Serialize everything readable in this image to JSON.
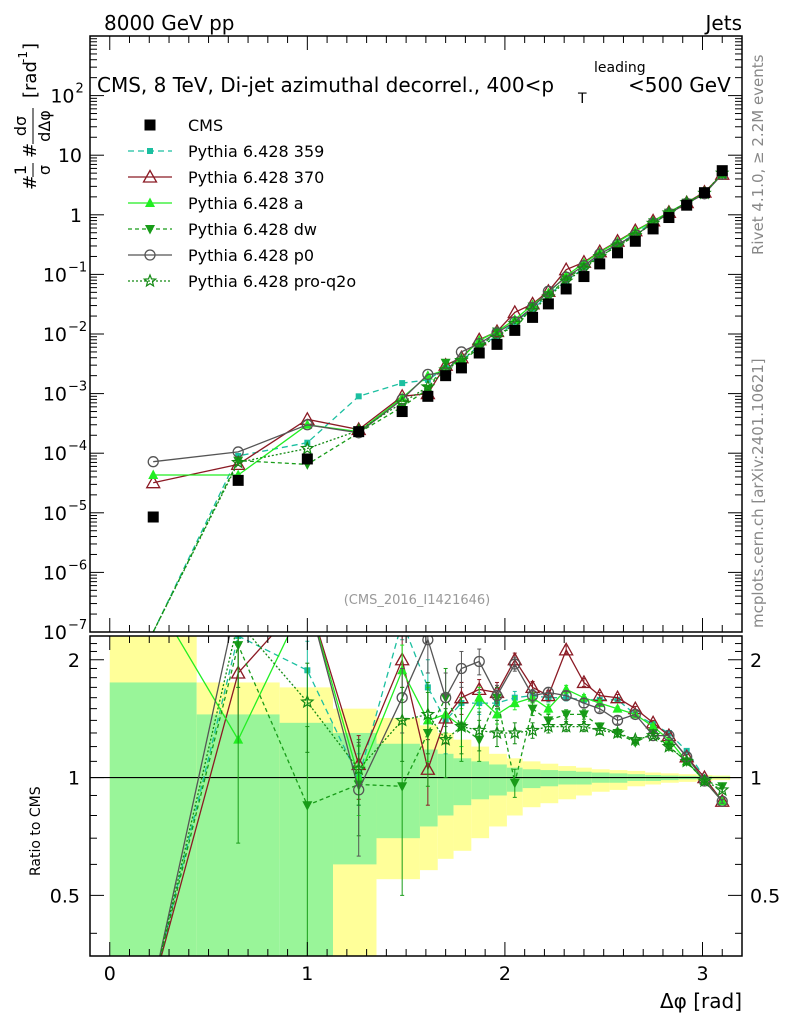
{
  "header": {
    "left": "8000 GeV pp",
    "right": "Jets",
    "side_rivet": "Rivet 4.1.0, ≥ 2.2M events",
    "side_site": "mcplots.cern.ch [arXiv:2401.10621]",
    "analysis_id": "(CMS_2016_I1421646)"
  },
  "chart_data": {
    "type": "scatter",
    "title_parts": [
      "CMS, 8 TeV, Di-jet azimuthal decorrel., 400<p",
      "leading",
      "T",
      "<500 GeV"
    ],
    "ylabel_parts": [
      "#",
      "1",
      "σ",
      "#",
      "dσ",
      "dΔφ",
      "[rad",
      "-1",
      "]"
    ],
    "xlabel": "Δφ [rad]",
    "ratio_ylabel": "Ratio to CMS",
    "xlim": [
      -0.1,
      3.2
    ],
    "ylim": [
      1e-07,
      1000
    ],
    "ratio_ylim": [
      0.35,
      2.3
    ],
    "x_ticks": [
      0,
      1,
      2,
      3
    ],
    "x_tick_labels": [
      "0",
      "1",
      "2",
      "3"
    ],
    "y_ticks": [
      1e-07,
      1e-06,
      1e-05,
      0.0001,
      0.001,
      0.01,
      0.1,
      1,
      10,
      100
    ],
    "y_tick_labels": [
      {
        "base": "10",
        "exp": "−7"
      },
      {
        "base": "10",
        "exp": "−6"
      },
      {
        "base": "10",
        "exp": "−5"
      },
      {
        "base": "10",
        "exp": "−4"
      },
      {
        "base": "10",
        "exp": "−3"
      },
      {
        "base": "10",
        "exp": "−2"
      },
      {
        "base": "10",
        "exp": "−1"
      },
      {
        "base": "1",
        "exp": ""
      },
      {
        "base": "10",
        "exp": ""
      },
      {
        "base": "10",
        "exp": "2"
      }
    ],
    "ratio_ticks": [
      0.5,
      1,
      2
    ],
    "ratio_tick_labels": [
      "0.5",
      "1",
      "2"
    ],
    "x": [
      0.22,
      0.65,
      1.0,
      1.26,
      1.48,
      1.61,
      1.7,
      1.78,
      1.87,
      1.96,
      2.05,
      2.14,
      2.22,
      2.31,
      2.4,
      2.48,
      2.57,
      2.66,
      2.75,
      2.83,
      2.92,
      3.01,
      3.1
    ],
    "bands": {
      "edges": [
        0.0,
        0.44,
        0.86,
        1.13,
        1.35,
        1.57,
        1.66,
        1.74,
        1.83,
        1.92,
        2.01,
        2.09,
        2.18,
        2.27,
        2.36,
        2.44,
        2.53,
        2.62,
        2.71,
        2.79,
        2.88,
        2.97,
        3.05,
        3.14
      ],
      "stat_low": [
        0.35,
        0.35,
        0.35,
        0.6,
        0.7,
        0.75,
        0.8,
        0.85,
        0.88,
        0.9,
        0.92,
        0.94,
        0.95,
        0.96,
        0.96,
        0.97,
        0.97,
        0.98,
        0.98,
        0.985,
        0.99,
        0.99,
        0.995
      ],
      "stat_high": [
        1.75,
        1.45,
        1.38,
        1.3,
        1.22,
        1.18,
        1.15,
        1.12,
        1.1,
        1.08,
        1.06,
        1.05,
        1.045,
        1.04,
        1.035,
        1.03,
        1.025,
        1.02,
        1.015,
        1.012,
        1.01,
        1.008,
        1.006
      ],
      "tot_low": [
        0.35,
        0.62,
        0.62,
        0.35,
        0.55,
        0.58,
        0.62,
        0.65,
        0.7,
        0.75,
        0.8,
        0.84,
        0.86,
        0.88,
        0.9,
        0.92,
        0.93,
        0.95,
        0.96,
        0.97,
        0.975,
        0.98,
        0.985
      ],
      "tot_high": [
        2.3,
        1.75,
        1.7,
        1.5,
        1.42,
        1.36,
        1.3,
        1.25,
        1.2,
        1.15,
        1.12,
        1.1,
        1.085,
        1.07,
        1.06,
        1.05,
        1.045,
        1.04,
        1.03,
        1.025,
        1.02,
        1.015,
        1.012
      ],
      "stat_color": "#99f599",
      "sys_color": "#ffff99"
    },
    "series": [
      {
        "name": "CMS",
        "color": "#000000",
        "marker": "square",
        "dash": "none",
        "ref": true,
        "values": [
          8.5e-06,
          3.5e-05,
          8e-05,
          0.00023,
          0.0005,
          0.0009,
          0.002,
          0.0027,
          0.0048,
          0.0067,
          0.0115,
          0.019,
          0.032,
          0.057,
          0.092,
          0.15,
          0.23,
          0.36,
          0.58,
          0.9,
          1.45,
          2.35,
          5.5
        ]
      },
      {
        "name": "Pythia 6.428 359",
        "color": "#1bbfa0",
        "marker": "smallsquare",
        "dash": "6,4",
        "values": [
          1e-07,
          9e-05,
          0.00015,
          0.0009,
          0.0015,
          0.0017,
          0.0027,
          0.0035,
          0.0065,
          0.009,
          0.016,
          0.026,
          0.045,
          0.078,
          0.127,
          0.21,
          0.32,
          0.48,
          0.75,
          1.1,
          1.6,
          2.3,
          4.8
        ],
        "ratio": [
          null,
          2.3,
          1.88,
          1.0,
          2.5,
          1.7,
          1.4,
          1.55,
          1.55,
          1.55,
          1.6,
          1.62,
          1.6,
          1.6,
          1.58,
          1.58,
          1.58,
          1.45,
          1.37,
          1.3,
          1.17,
          1.0,
          0.87
        ],
        "ratio_err": [
          0,
          0,
          0.35,
          0.15,
          0.25,
          0.3,
          0.25,
          0.2,
          0.1,
          0.06,
          0.06,
          0.05,
          0.04,
          0.03,
          0.03,
          0.02,
          0.02,
          0.02,
          0.02,
          0.015,
          0.015,
          0.01,
          0.01
        ]
      },
      {
        "name": "Pythia 6.428 370",
        "color": "#8b1a24",
        "marker": "triangle-open",
        "dash": "none",
        "values": [
          3.2e-05,
          6.5e-05,
          0.00037,
          0.00025,
          0.0009,
          0.001,
          0.003,
          0.004,
          0.008,
          0.011,
          0.023,
          0.032,
          0.052,
          0.12,
          0.16,
          0.24,
          0.36,
          0.54,
          0.79,
          1.1,
          1.6,
          2.4,
          4.8
        ],
        "ratio": [
          null,
          1.85,
          4.5,
          1.08,
          2.0,
          1.05,
          1.42,
          1.6,
          1.68,
          1.65,
          2.0,
          1.7,
          1.62,
          2.12,
          1.75,
          1.62,
          1.6,
          1.5,
          1.38,
          1.28,
          1.13,
          1.0,
          0.87
        ],
        "ratio_err": [
          0,
          0.6,
          0.7,
          0.2,
          0.3,
          0.2,
          0.2,
          0.15,
          0.1,
          0.1,
          0.08,
          0.06,
          0.05,
          0.05,
          0.04,
          0.03,
          0.03,
          0.02,
          0.02,
          0.015,
          0.015,
          0.01,
          0.01
        ]
      },
      {
        "name": "Pythia 6.428 a",
        "color": "#22ee22",
        "marker": "triangle",
        "dash": "none",
        "values": [
          4.3e-05,
          4.3e-05,
          0.0003,
          0.00023,
          0.00085,
          0.002,
          0.0025,
          0.0039,
          0.0078,
          0.011,
          0.0175,
          0.031,
          0.049,
          0.095,
          0.155,
          0.235,
          0.35,
          0.53,
          0.78,
          1.1,
          1.6,
          2.3,
          4.8
        ],
        "ratio": [
          5.0,
          1.25,
          3.7,
          1.0,
          1.88,
          1.4,
          1.45,
          1.35,
          1.6,
          1.45,
          1.55,
          1.6,
          1.5,
          1.68,
          1.6,
          1.55,
          1.5,
          1.45,
          1.35,
          1.25,
          1.1,
          0.98,
          0.87
        ],
        "ratio_err": [
          0,
          0,
          0.5,
          0.2,
          0.3,
          0.3,
          0.2,
          0.15,
          0.1,
          0.08,
          0.06,
          0.05,
          0.04,
          0.04,
          0.03,
          0.03,
          0.02,
          0.02,
          0.02,
          0.015,
          0.015,
          0.01,
          0.01
        ]
      },
      {
        "name": "Pythia 6.428 dw",
        "color": "#189c18",
        "marker": "triangle-down",
        "dash": "4,3",
        "values": [
          1e-07,
          7.5e-05,
          6.5e-05,
          0.00022,
          0.0006,
          0.0012,
          0.0033,
          0.0034,
          0.0059,
          0.011,
          0.012,
          0.029,
          0.045,
          0.083,
          0.135,
          0.2,
          0.3,
          0.44,
          0.75,
          1.08,
          1.6,
          2.3,
          4.8
        ],
        "ratio": [
          null,
          2.18,
          0.85,
          0.96,
          0.95,
          1.3,
          1.6,
          1.35,
          1.25,
          1.6,
          0.97,
          1.5,
          1.4,
          1.45,
          1.45,
          1.35,
          1.3,
          1.23,
          1.3,
          1.2,
          1.1,
          0.98,
          0.95
        ],
        "ratio_err": [
          0,
          1.5,
          0.5,
          0.25,
          0.45,
          0.35,
          0.3,
          0.25,
          0.15,
          0.1,
          0.08,
          0.06,
          0.05,
          0.04,
          0.04,
          0.03,
          0.03,
          0.02,
          0.02,
          0.015,
          0.015,
          0.01,
          0.01
        ]
      },
      {
        "name": "Pythia 6.428 p0",
        "color": "#555555",
        "marker": "circle-open",
        "dash": "none",
        "values": [
          7.2e-05,
          0.000105,
          0.0003,
          0.00022,
          0.0008,
          0.0021,
          0.0022,
          0.005,
          0.0069,
          0.0105,
          0.016,
          0.028,
          0.052,
          0.09,
          0.14,
          0.22,
          0.32,
          0.46,
          0.72,
          1.05,
          1.55,
          2.25,
          4.8
        ],
        "ratio": [
          null,
          3.0,
          3.7,
          0.93,
          1.6,
          2.25,
          1.6,
          1.9,
          1.98,
          1.62,
          1.95,
          1.62,
          1.65,
          1.62,
          1.55,
          1.5,
          1.4,
          1.45,
          1.28,
          1.28,
          1.13,
          0.98,
          0.87
        ],
        "ratio_err": [
          0,
          0.5,
          0.6,
          0.3,
          0.3,
          0.4,
          0.25,
          0.2,
          0.15,
          0.1,
          0.08,
          0.06,
          0.05,
          0.04,
          0.04,
          0.03,
          0.03,
          0.02,
          0.02,
          0.015,
          0.015,
          0.01,
          0.01
        ]
      },
      {
        "name": "Pythia 6.428 pro-q2o",
        "color": "#138a13",
        "marker": "star",
        "dash": "2,2",
        "values": [
          1e-07,
          7e-05,
          0.00012,
          0.00024,
          0.0007,
          0.0013,
          0.0025,
          0.0036,
          0.0063,
          0.0087,
          0.015,
          0.025,
          0.042,
          0.077,
          0.124,
          0.2,
          0.3,
          0.45,
          0.72,
          1.08,
          1.6,
          2.3,
          5.0
        ],
        "ratio": [
          null,
          2.5,
          1.56,
          1.05,
          1.4,
          1.45,
          1.25,
          1.35,
          1.32,
          1.3,
          1.3,
          1.32,
          1.35,
          1.35,
          1.35,
          1.32,
          1.3,
          1.25,
          1.28,
          1.2,
          1.1,
          0.98,
          0.93
        ],
        "ratio_err": [
          0,
          0.8,
          0.4,
          0.2,
          0.3,
          0.3,
          0.25,
          0.2,
          0.15,
          0.1,
          0.08,
          0.06,
          0.05,
          0.04,
          0.04,
          0.03,
          0.03,
          0.02,
          0.02,
          0.015,
          0.015,
          0.01,
          0.01
        ]
      }
    ]
  }
}
